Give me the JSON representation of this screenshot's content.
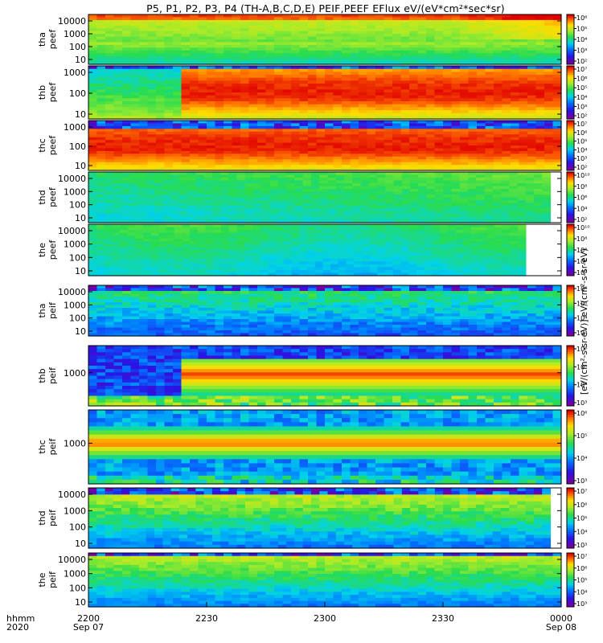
{
  "title": "P5, P1, P2, P3, P4 (TH-A,B,C,D,E) PEIF,PEEF EFlux eV/(eV*cm²*sec*sr)",
  "colorbar_label": "[eV/(cm²-s-sr-eV)] eV/(cm²-s-sr-eV)",
  "x_axis": {
    "row_label_1": "hhmm",
    "row_label_2": "2020",
    "ticks": [
      {
        "time": "2200",
        "date": "Sep 07"
      },
      {
        "time": "2230",
        "date": ""
      },
      {
        "time": "2300",
        "date": ""
      },
      {
        "time": "2330",
        "date": ""
      },
      {
        "time": "0000",
        "date": "Sep 08"
      }
    ]
  },
  "chart_data": {
    "type": "heatmap",
    "x_range_minutes": [
      0,
      120
    ],
    "panels": [
      {
        "name": "tha peef",
        "probe": "tha",
        "product": "peef",
        "y_ticks": [
          "10000",
          "1000",
          "100",
          "10"
        ],
        "cb_ticks": [
          "10⁶",
          "10⁵",
          "10⁴",
          "10³",
          "10²"
        ],
        "gap_start_frac": null
      },
      {
        "name": "thb peef",
        "probe": "thb",
        "product": "peef",
        "y_ticks": [
          "1000",
          "100",
          "10"
        ],
        "cb_ticks": [
          "10⁷",
          "10⁶",
          "10⁵",
          "10⁴",
          "10³",
          "10²"
        ],
        "gap_start_frac": null
      },
      {
        "name": "thc peef",
        "probe": "thc",
        "product": "peef",
        "y_ticks": [
          "1000",
          "100",
          "10"
        ],
        "cb_ticks": [
          "10⁷",
          "10⁶",
          "10⁵",
          "10⁴",
          "10³",
          "10²"
        ],
        "gap_start_frac": null
      },
      {
        "name": "thd peef",
        "probe": "thd",
        "product": "peef",
        "y_ticks": [
          "10000",
          "1000",
          "100",
          "10"
        ],
        "cb_ticks": [
          "10¹⁰",
          "10⁸",
          "10⁶",
          "10⁴",
          "10²"
        ],
        "gap_start_frac": 0.977
      },
      {
        "name": "the peef",
        "probe": "the",
        "product": "peef",
        "y_ticks": [
          "10000",
          "1000",
          "100",
          "10"
        ],
        "cb_ticks": [
          "10¹⁰",
          "10⁸",
          "10⁶",
          "10⁴",
          "10²"
        ],
        "gap_start_frac": 0.925
      },
      {
        "name": "tha peif",
        "probe": "tha",
        "product": "peif",
        "y_ticks": [
          "10000",
          "1000",
          "100",
          "10"
        ],
        "cb_ticks": [
          "10⁶",
          "10⁵",
          "10⁴",
          "10³"
        ],
        "gap_start_frac": null
      },
      {
        "name": "thb peif",
        "probe": "thb",
        "product": "peif",
        "y_ticks": [
          "1000"
        ],
        "cb_ticks": [
          "10⁶",
          "10⁵",
          "10⁴",
          "10³"
        ],
        "gap_start_frac": null
      },
      {
        "name": "thc peif",
        "probe": "thc",
        "product": "peif",
        "y_ticks": [
          "1000"
        ],
        "cb_ticks": [
          "10⁶",
          "10⁵",
          "10⁴",
          "10³"
        ],
        "gap_start_frac": null
      },
      {
        "name": "thd peif",
        "probe": "thd",
        "product": "peif",
        "y_ticks": [
          "10000",
          "1000",
          "100",
          "10"
        ],
        "cb_ticks": [
          "10⁷",
          "10⁶",
          "10⁵",
          "10⁴",
          "10³"
        ],
        "gap_start_frac": 0.977
      },
      {
        "name": "the peif",
        "probe": "the",
        "product": "peif",
        "y_ticks": [
          "10000",
          "1000",
          "100",
          "10"
        ],
        "cb_ticks": [
          "10⁷",
          "10⁶",
          "10⁵",
          "10⁴",
          "10³"
        ],
        "gap_start_frac": null
      }
    ]
  }
}
